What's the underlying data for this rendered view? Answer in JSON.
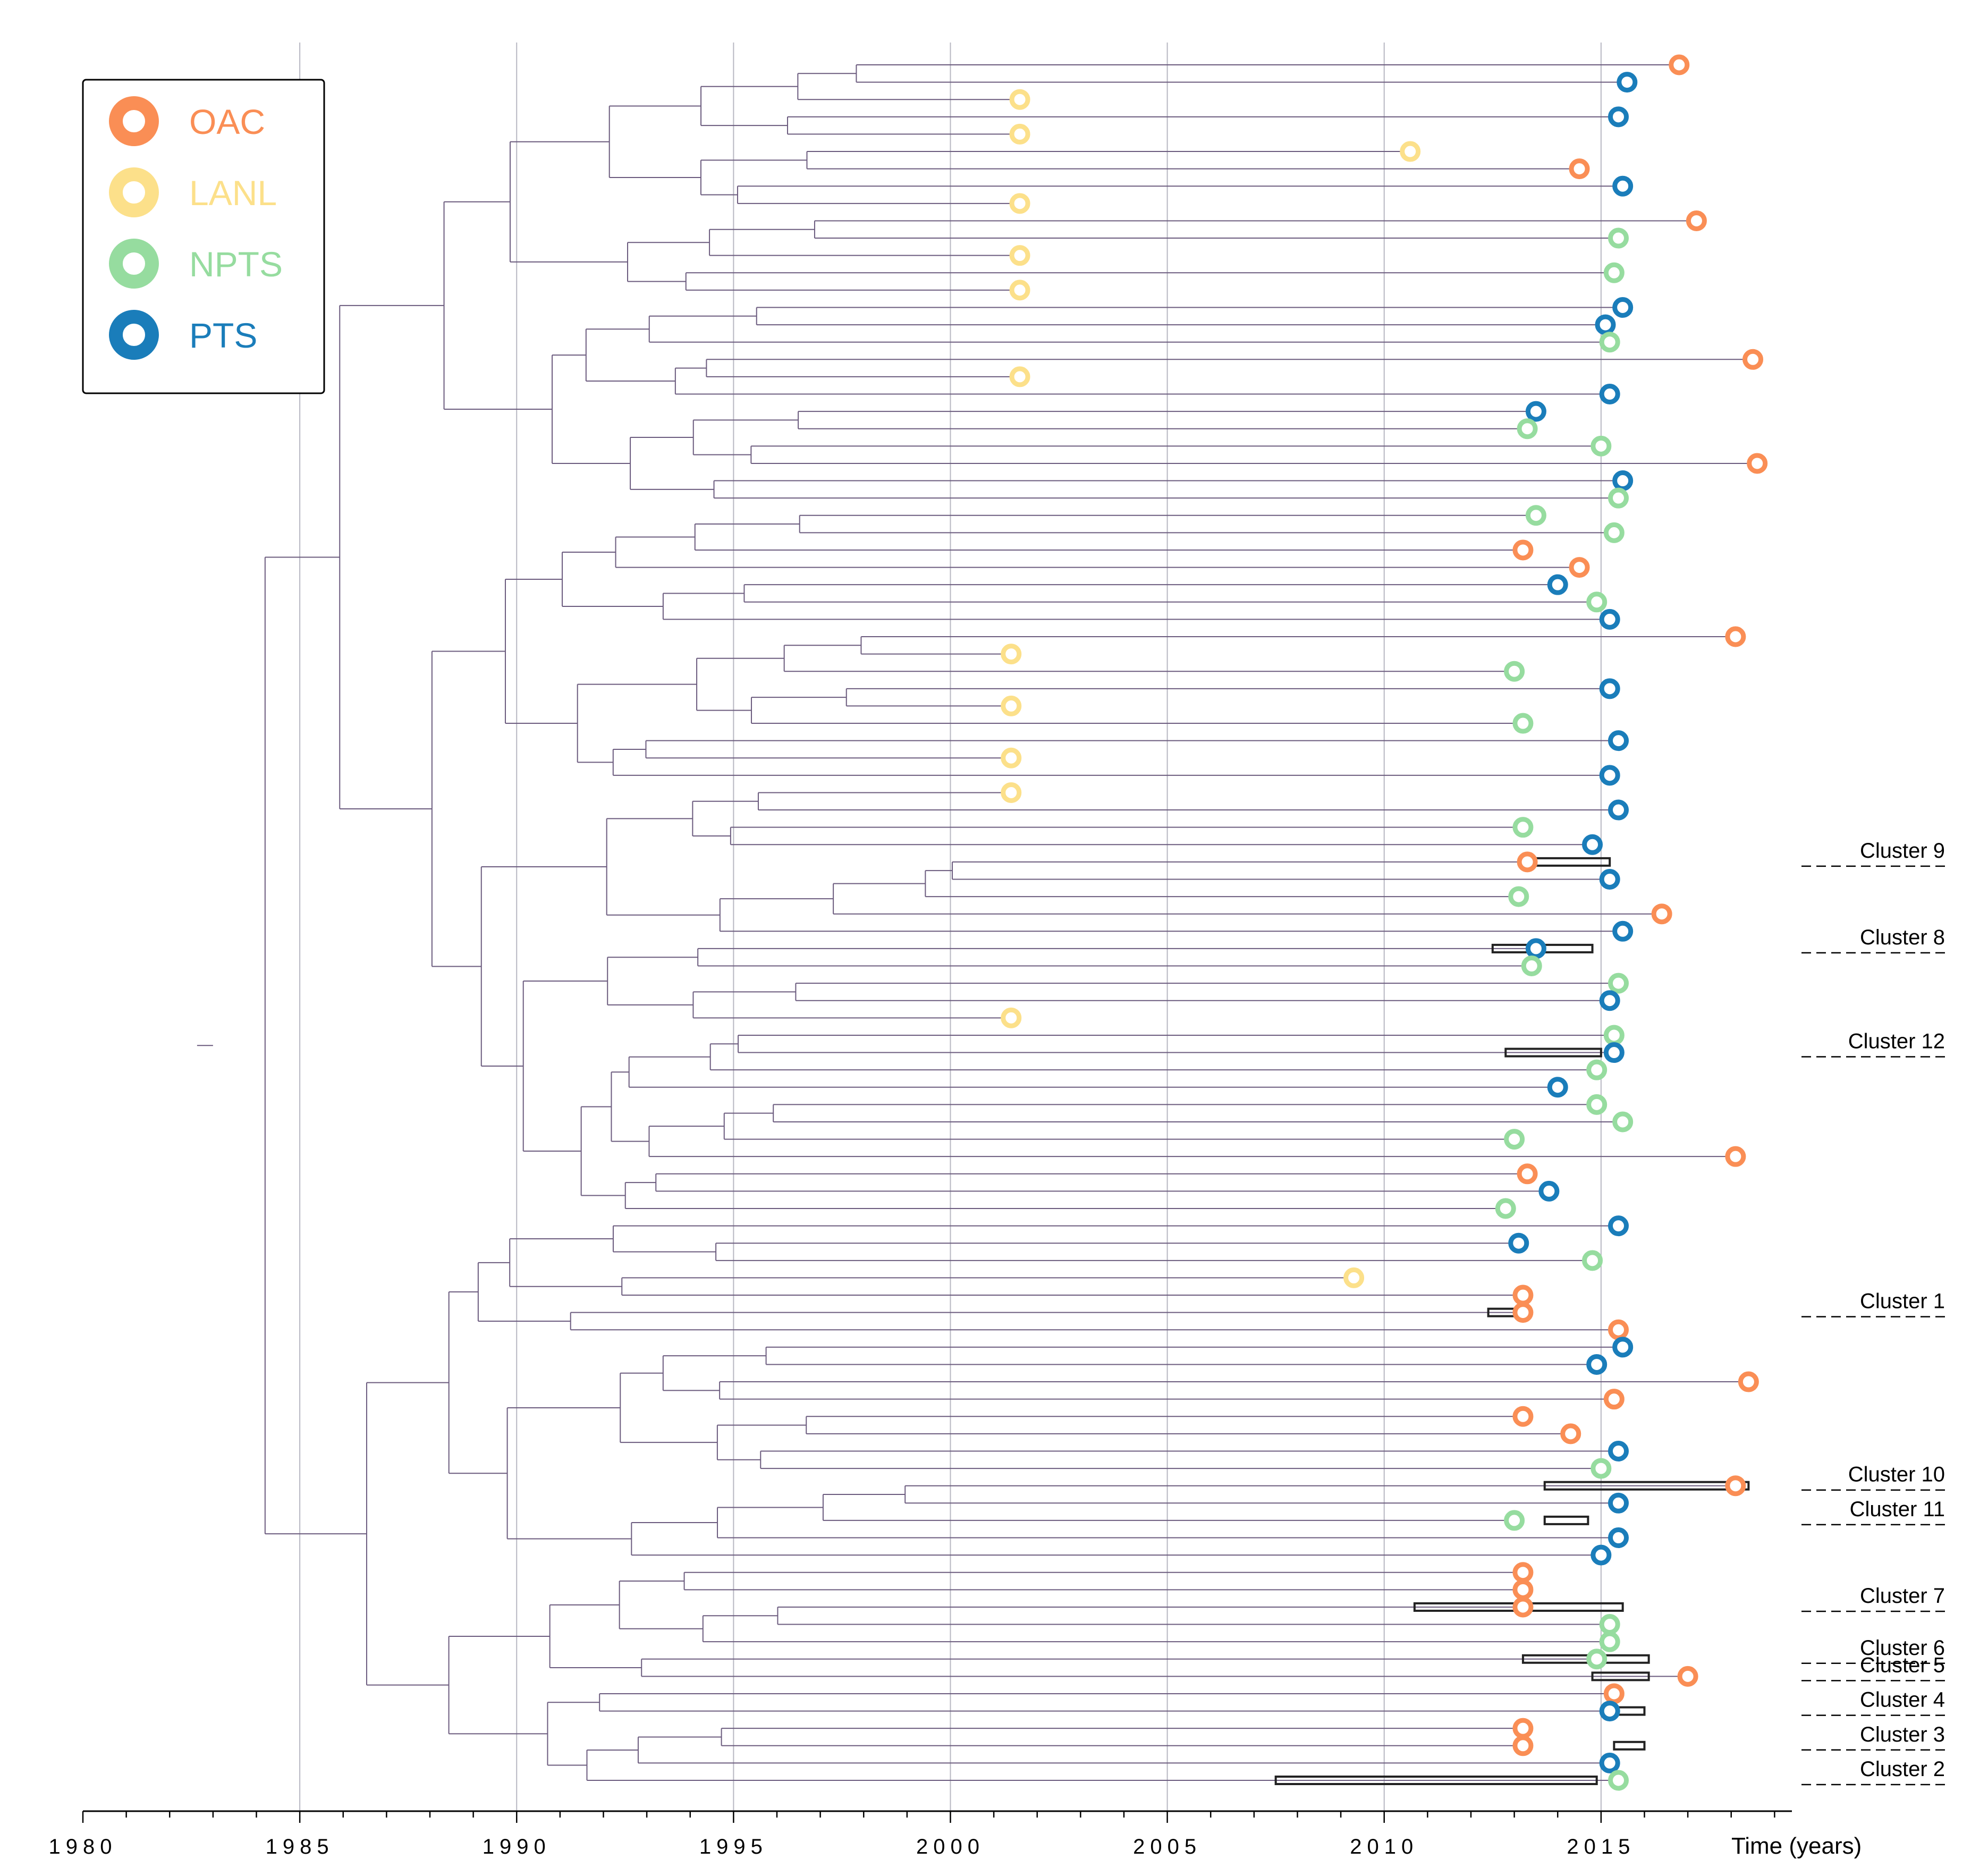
{
  "chart_data": {
    "type": "phylogenetic-tree",
    "xlabel": "Time (years)",
    "xlim": [
      1980,
      2019.4
    ],
    "ticks": [
      1980,
      1985,
      1990,
      1995,
      2000,
      2005,
      2010,
      2015
    ],
    "tick_labels": [
      "1980",
      "1985",
      "1990",
      "1995",
      "2000",
      "2005",
      "2010",
      "2015"
    ],
    "gridlines": [
      1985,
      1990,
      1995,
      2000,
      2005,
      2010,
      2015
    ],
    "root_year": 1983.0,
    "legend": [
      {
        "label": "OAC",
        "color": "#FA8E55"
      },
      {
        "label": "LANL",
        "color": "#FCE08A"
      },
      {
        "label": "NPTS",
        "color": "#96DC9F"
      },
      {
        "label": "PTS",
        "color": "#1A7DBA"
      }
    ],
    "branch_color": "#6B5B7E",
    "cluster_color": "#222222",
    "n_tips": 100,
    "tips_year_and_group": [
      [
        2016.8,
        "OAC"
      ],
      [
        2015.6,
        "PTS"
      ],
      [
        2001.6,
        "LANL"
      ],
      [
        2015.4,
        "PTS"
      ],
      [
        2001.6,
        "LANL"
      ],
      [
        2010.6,
        "LANL"
      ],
      [
        2014.5,
        "OAC"
      ],
      [
        2015.5,
        "PTS"
      ],
      [
        2001.6,
        "LANL"
      ],
      [
        2017.2,
        "OAC"
      ],
      [
        2015.4,
        "NPTS"
      ],
      [
        2001.6,
        "LANL"
      ],
      [
        2015.3,
        "NPTS"
      ],
      [
        2001.6,
        "LANL"
      ],
      [
        2015.5,
        "PTS"
      ],
      [
        2015.1,
        "PTS"
      ],
      [
        2015.2,
        "NPTS"
      ],
      [
        2018.5,
        "OAC"
      ],
      [
        2001.6,
        "LANL"
      ],
      [
        2015.2,
        "PTS"
      ],
      [
        2013.5,
        "PTS"
      ],
      [
        2013.3,
        "NPTS"
      ],
      [
        2015.0,
        "NPTS"
      ],
      [
        2018.6,
        "OAC"
      ],
      [
        2015.5,
        "PTS"
      ],
      [
        2015.4,
        "NPTS"
      ],
      [
        2013.5,
        "NPTS"
      ],
      [
        2015.3,
        "NPTS"
      ],
      [
        2013.2,
        "OAC"
      ],
      [
        2014.5,
        "OAC"
      ],
      [
        2014.0,
        "PTS"
      ],
      [
        2014.9,
        "NPTS"
      ],
      [
        2015.2,
        "PTS"
      ],
      [
        2018.1,
        "OAC"
      ],
      [
        2001.4,
        "LANL"
      ],
      [
        2013.0,
        "NPTS"
      ],
      [
        2015.2,
        "PTS"
      ],
      [
        2001.4,
        "LANL"
      ],
      [
        2013.2,
        "NPTS"
      ],
      [
        2015.4,
        "PTS"
      ],
      [
        2001.4,
        "LANL"
      ],
      [
        2015.2,
        "PTS"
      ],
      [
        2001.4,
        "LANL"
      ],
      [
        2015.4,
        "PTS"
      ],
      [
        2013.2,
        "NPTS"
      ],
      [
        2014.8,
        "PTS"
      ],
      [
        2013.3,
        "OAC"
      ],
      [
        2015.2,
        "PTS"
      ],
      [
        2013.1,
        "NPTS"
      ],
      [
        2016.4,
        "OAC"
      ],
      [
        2015.5,
        "PTS"
      ],
      [
        2013.5,
        "PTS"
      ],
      [
        2013.4,
        "NPTS"
      ],
      [
        2015.4,
        "NPTS"
      ],
      [
        2015.2,
        "PTS"
      ],
      [
        2001.4,
        "LANL"
      ],
      [
        2015.3,
        "NPTS"
      ],
      [
        2015.3,
        "PTS"
      ],
      [
        2014.9,
        "NPTS"
      ],
      [
        2014.0,
        "PTS"
      ],
      [
        2014.9,
        "NPTS"
      ],
      [
        2015.5,
        "NPTS"
      ],
      [
        2013.0,
        "NPTS"
      ],
      [
        2018.1,
        "OAC"
      ],
      [
        2013.3,
        "OAC"
      ],
      [
        2013.8,
        "PTS"
      ],
      [
        2012.8,
        "NPTS"
      ],
      [
        2015.4,
        "PTS"
      ],
      [
        2013.1,
        "PTS"
      ],
      [
        2014.8,
        "NPTS"
      ],
      [
        2009.3,
        "LANL"
      ],
      [
        2013.2,
        "OAC"
      ],
      [
        2013.2,
        "OAC"
      ],
      [
        2015.4,
        "OAC"
      ],
      [
        2015.5,
        "PTS"
      ],
      [
        2014.9,
        "PTS"
      ],
      [
        2018.4,
        "OAC"
      ],
      [
        2015.3,
        "OAC"
      ],
      [
        2013.2,
        "OAC"
      ],
      [
        2014.3,
        "OAC"
      ],
      [
        2015.4,
        "PTS"
      ],
      [
        2015.0,
        "NPTS"
      ],
      [
        2018.1,
        "OAC"
      ],
      [
        2015.4,
        "PTS"
      ],
      [
        2013.0,
        "NPTS"
      ],
      [
        2015.4,
        "PTS"
      ],
      [
        2015.0,
        "PTS"
      ],
      [
        2013.2,
        "OAC"
      ],
      [
        2013.2,
        "OAC"
      ],
      [
        2013.2,
        "OAC"
      ],
      [
        2015.2,
        "NPTS"
      ],
      [
        2015.2,
        "NPTS"
      ],
      [
        2014.9,
        "NPTS"
      ],
      [
        2017.0,
        "OAC"
      ],
      [
        2015.3,
        "OAC"
      ],
      [
        2015.2,
        "PTS"
      ],
      [
        2013.2,
        "OAC"
      ],
      [
        2013.2,
        "OAC"
      ],
      [
        2015.2,
        "PTS"
      ],
      [
        2015.4,
        "NPTS"
      ]
    ],
    "clusters": [
      {
        "label": "Cluster 9",
        "tip": 46,
        "range": [
          2013.5,
          2015.2
        ]
      },
      {
        "label": "Cluster 8",
        "tip": 51,
        "range": [
          2012.5,
          2014.8
        ]
      },
      {
        "label": "Cluster 12",
        "tip": 57,
        "range": [
          2012.8,
          2015.0
        ]
      },
      {
        "label": "Cluster 1",
        "tip": 72,
        "range": [
          2012.4,
          2013.2
        ]
      },
      {
        "label": "Cluster 10",
        "tip": 82,
        "range": [
          2013.7,
          2018.4
        ]
      },
      {
        "label": "Cluster 11",
        "tip": 84,
        "range": [
          2013.7,
          2014.7
        ]
      },
      {
        "label": "Cluster 7",
        "tip": 89,
        "range": [
          2010.7,
          2015.5
        ]
      },
      {
        "label": "Cluster 6",
        "tip": 92,
        "range": [
          2013.2,
          2016.1
        ]
      },
      {
        "label": "Cluster 5",
        "tip": 93,
        "range": [
          2014.8,
          2016.1
        ]
      },
      {
        "label": "Cluster 4",
        "tip": 95,
        "range": [
          2015.3,
          2016.0
        ]
      },
      {
        "label": "Cluster 3",
        "tip": 97,
        "range": [
          2015.3,
          2016.0
        ]
      },
      {
        "label": "Cluster 2",
        "tip": 99,
        "range": [
          2007.5,
          2014.9
        ]
      }
    ]
  }
}
